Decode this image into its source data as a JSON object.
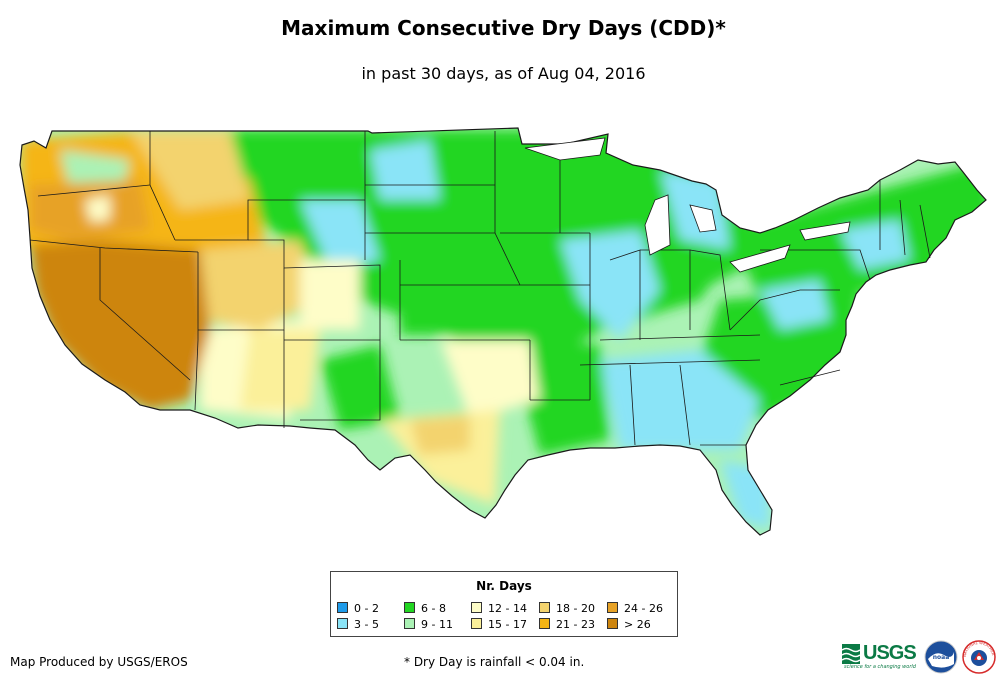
{
  "title": "Maximum Consecutive Dry Days (CDD)*",
  "subtitle": "in past 30 days, as of Aug 04, 2016",
  "legend": {
    "title": "Nr. Days",
    "items": [
      {
        "label": "0 - 2",
        "color": "#1e9bea"
      },
      {
        "label": "3 - 5",
        "color": "#8ae4f7"
      },
      {
        "label": "6 - 8",
        "color": "#22d622"
      },
      {
        "label": "9 - 11",
        "color": "#abf2b5"
      },
      {
        "label": "12 - 14",
        "color": "#fefdc8"
      },
      {
        "label": "15 - 17",
        "color": "#fbf09a"
      },
      {
        "label": "18 - 20",
        "color": "#f3d36e"
      },
      {
        "label": "21 - 23",
        "color": "#f5b514"
      },
      {
        "label": "24 - 26",
        "color": "#e7a226"
      },
      {
        "label": "> 26",
        "color": "#cd850e"
      }
    ]
  },
  "credit": "Map Produced by USGS/EROS",
  "footnote": "* Dry Day is rainfall < 0.04 in.",
  "logos": {
    "usgs_word": "USGS",
    "usgs_tagline": "science for a changing world",
    "noaa": "noaa",
    "nws": "NATIONAL WEATHER SERVICE"
  },
  "colors": {
    "land_border": "#1a1a1a",
    "usgs_green": "#0b7a45",
    "noaa_blue": "#1d4f9c",
    "nws_red": "#d62b2b"
  }
}
